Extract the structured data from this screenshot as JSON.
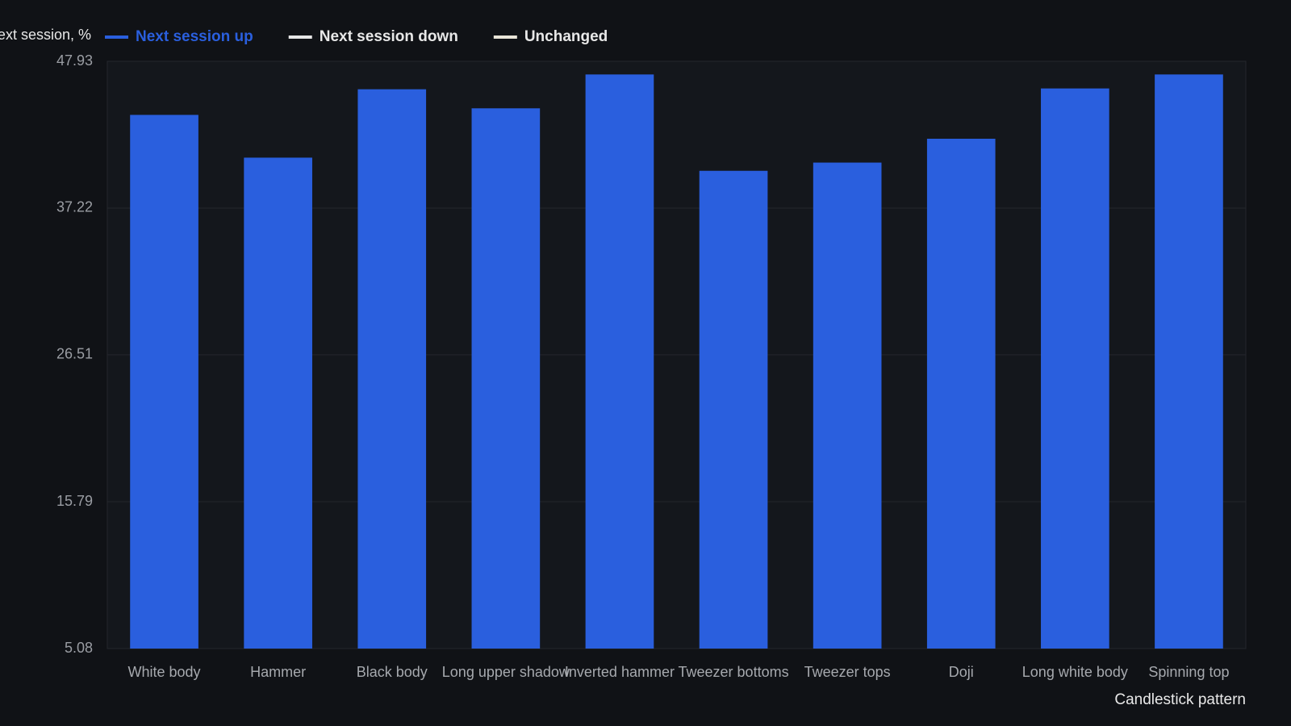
{
  "chart_data": {
    "type": "bar",
    "y_label": "Next session, %",
    "x_label": "Candlestick pattern",
    "categories": [
      "White body",
      "Hammer",
      "Black body",
      "Long upper shadow",
      "Inverted hammer",
      "Tweezer bottoms",
      "Tweezer tops",
      "Doji",
      "Long white body",
      "Spinning top"
    ],
    "series": [
      {
        "name": "Next session up",
        "color": "#2a5fde",
        "values": [
          44.02,
          40.9,
          45.89,
          44.5,
          46.97,
          39.94,
          40.54,
          42.28,
          45.95,
          46.97
        ]
      },
      {
        "name": "Next session down",
        "color": "#e6e6e6"
      },
      {
        "name": "Unchanged",
        "color": "#e8e4d8"
      }
    ],
    "ylim": [
      5.08,
      47.93
    ],
    "yticks": [
      5.08,
      15.79,
      26.51,
      37.22,
      47.93
    ],
    "grid": true
  }
}
